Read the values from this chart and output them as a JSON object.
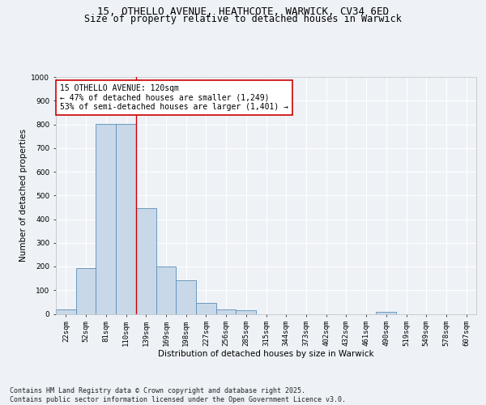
{
  "title_line1": "15, OTHELLO AVENUE, HEATHCOTE, WARWICK, CV34 6ED",
  "title_line2": "Size of property relative to detached houses in Warwick",
  "xlabel": "Distribution of detached houses by size in Warwick",
  "ylabel": "Number of detached properties",
  "bar_color": "#c8d8e8",
  "bar_edge_color": "#5b8db8",
  "categories": [
    "22sqm",
    "52sqm",
    "81sqm",
    "110sqm",
    "139sqm",
    "169sqm",
    "198sqm",
    "227sqm",
    "256sqm",
    "285sqm",
    "315sqm",
    "344sqm",
    "373sqm",
    "402sqm",
    "432sqm",
    "461sqm",
    "490sqm",
    "519sqm",
    "549sqm",
    "578sqm",
    "607sqm"
  ],
  "values": [
    18,
    193,
    803,
    803,
    446,
    199,
    142,
    47,
    18,
    14,
    0,
    0,
    0,
    0,
    0,
    0,
    10,
    0,
    0,
    0,
    0
  ],
  "vline_x": 3.5,
  "vline_color": "#cc0000",
  "annotation_text": "15 OTHELLO AVENUE: 120sqm\n← 47% of detached houses are smaller (1,249)\n53% of semi-detached houses are larger (1,401) →",
  "annotation_box_color": "#ffffff",
  "annotation_box_edge": "#cc0000",
  "ylim": [
    0,
    1000
  ],
  "yticks": [
    0,
    100,
    200,
    300,
    400,
    500,
    600,
    700,
    800,
    900,
    1000
  ],
  "footer_line1": "Contains HM Land Registry data © Crown copyright and database right 2025.",
  "footer_line2": "Contains public sector information licensed under the Open Government Licence v3.0.",
  "bg_color": "#eef2f7",
  "grid_color": "#ffffff",
  "title_fontsize": 9,
  "subtitle_fontsize": 8.5,
  "axis_label_fontsize": 7.5,
  "tick_fontsize": 6.5,
  "annotation_fontsize": 7,
  "footer_fontsize": 6
}
